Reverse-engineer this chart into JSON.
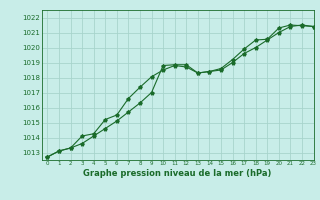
{
  "title": "Graphe pression niveau de la mer (hPa)",
  "bg_color": "#c8ede8",
  "grid_color": "#a8d4cc",
  "line_color": "#1a6b2a",
  "x_min": -0.5,
  "x_max": 23,
  "y_min": 1012.5,
  "y_max": 1022.5,
  "yticks": [
    1013,
    1014,
    1015,
    1016,
    1017,
    1018,
    1019,
    1020,
    1021,
    1022
  ],
  "xticks": [
    0,
    1,
    2,
    3,
    4,
    5,
    6,
    7,
    8,
    9,
    10,
    11,
    12,
    13,
    14,
    15,
    16,
    17,
    18,
    19,
    20,
    21,
    22,
    23
  ],
  "line1_x": [
    0,
    1,
    2,
    3,
    4,
    5,
    6,
    7,
    8,
    9,
    10,
    11,
    12,
    13,
    14,
    15,
    16,
    17,
    18,
    19,
    20,
    21,
    22,
    23
  ],
  "line1_y": [
    1012.7,
    1013.1,
    1013.3,
    1013.6,
    1014.1,
    1014.6,
    1015.1,
    1015.7,
    1016.3,
    1017.0,
    1018.8,
    1018.85,
    1018.85,
    1018.3,
    1018.4,
    1018.5,
    1019.0,
    1019.6,
    1020.0,
    1020.5,
    1021.0,
    1021.4,
    1021.5,
    1021.4
  ],
  "line2_x": [
    0,
    1,
    2,
    3,
    4,
    5,
    6,
    7,
    8,
    9,
    10,
    11,
    12,
    13,
    14,
    15,
    16,
    17,
    18,
    19,
    20,
    21,
    22,
    23
  ],
  "line2_y": [
    1012.7,
    1013.1,
    1013.3,
    1014.1,
    1014.25,
    1015.2,
    1015.5,
    1016.6,
    1017.35,
    1018.05,
    1018.5,
    1018.8,
    1018.7,
    1018.3,
    1018.4,
    1018.6,
    1019.2,
    1019.9,
    1020.5,
    1020.55,
    1021.3,
    1021.5,
    1021.45,
    1021.4
  ]
}
